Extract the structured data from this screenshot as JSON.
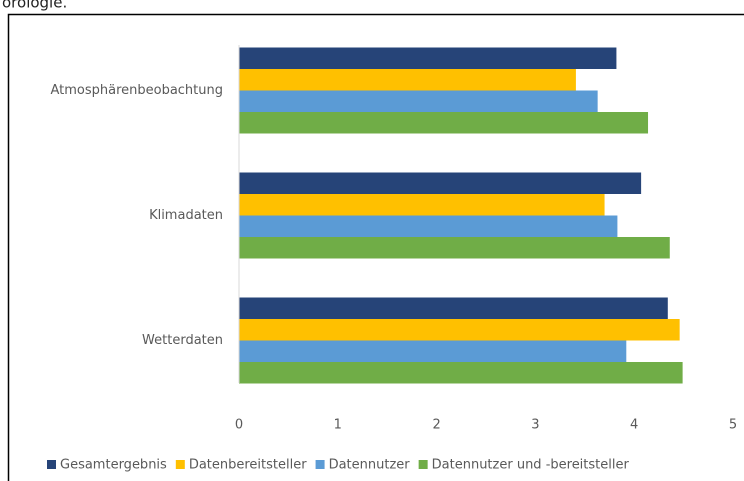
{
  "header_text": "orologie.",
  "chart_data": {
    "type": "hbar",
    "categories": [
      "Atmosphärenbeobachtung",
      "Klimadaten",
      "Wetterdaten"
    ],
    "series": [
      {
        "name": "Gesamtergebnis",
        "color": "#264478",
        "values": [
          3.82,
          4.07,
          4.34
        ]
      },
      {
        "name": "Datenbereitsteller",
        "color": "#ffc000",
        "values": [
          3.41,
          3.7,
          4.46
        ]
      },
      {
        "name": "Datennutzer",
        "color": "#5b9bd5",
        "values": [
          3.63,
          3.83,
          3.92
        ]
      },
      {
        "name": "Datennutzer und -bereitsteller",
        "color": "#70ad47",
        "values": [
          4.14,
          4.36,
          4.49
        ]
      }
    ],
    "xlim": [
      0,
      5
    ],
    "xticks": [
      0,
      1,
      2,
      3,
      4,
      5
    ],
    "grid": false,
    "legend": "bottom"
  }
}
